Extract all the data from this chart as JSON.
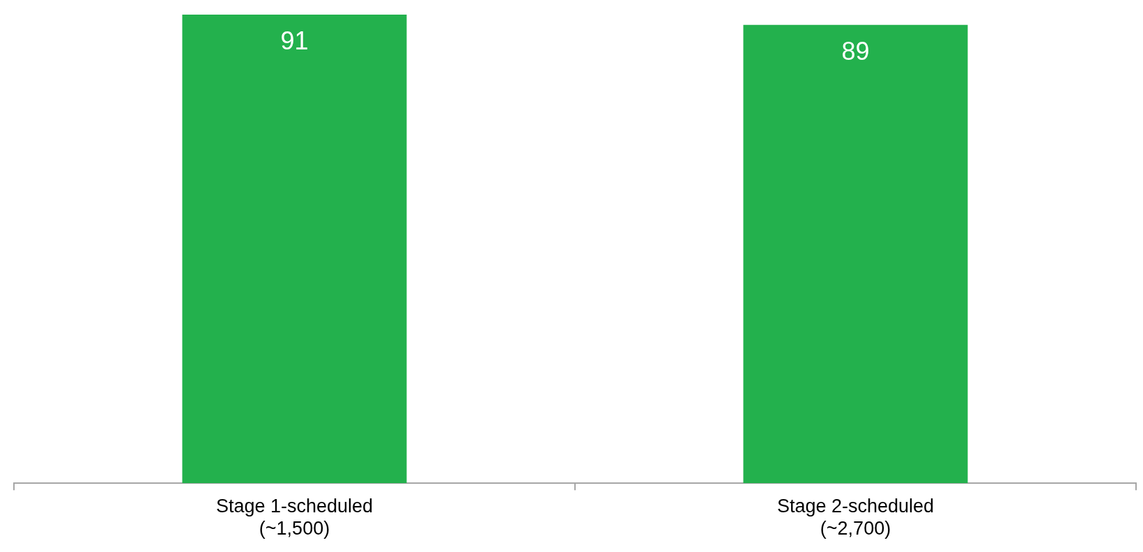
{
  "chart_data": {
    "type": "bar",
    "categories": [
      "Stage 1-scheduled\n(~1,500)",
      "Stage 2-scheduled\n(~2,700)"
    ],
    "values": [
      91,
      89
    ],
    "color": "#23b14d",
    "data_labels": true,
    "grid": false,
    "legend": false
  }
}
